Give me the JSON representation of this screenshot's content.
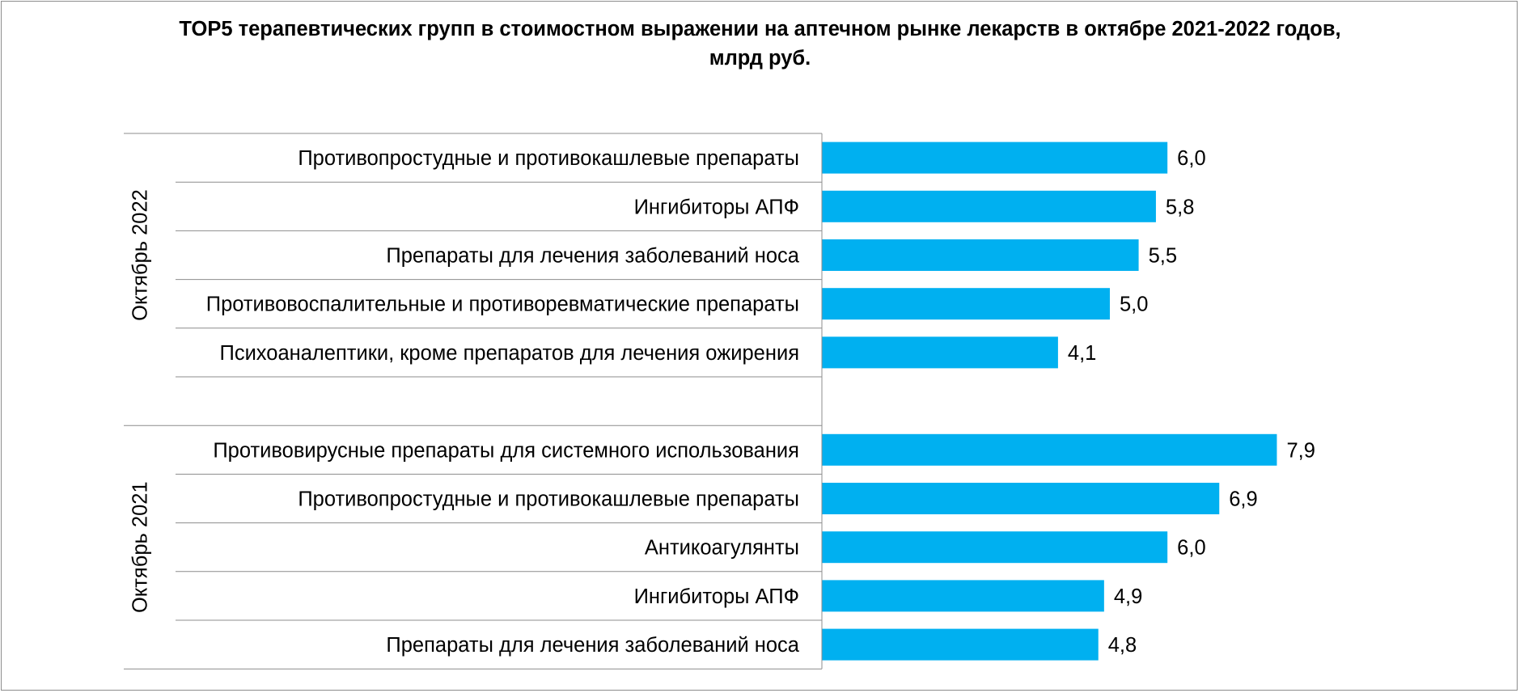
{
  "chart_data": {
    "type": "bar",
    "orientation": "horizontal",
    "title": "TOP5 терапевтических групп в стоимостном выражении на аптечном рынке лекарств в октябре 2021-2022 годов,",
    "subtitle": "млрд руб.",
    "bar_color": "#00B0F0",
    "value_format": "comma-decimal-1",
    "grid": false,
    "legend": "none",
    "xlim": [
      0,
      9.2
    ],
    "groups": [
      {
        "name": "Октябрь 2022",
        "categories": [
          "Противопростудные и противокашлевые препараты",
          "Ингибиторы АПФ",
          "Препараты для лечения заболеваний носа",
          "Противовоспалительные и противоревматические препараты",
          "Психоаналептики, кроме препаратов для лечения ожирения"
        ],
        "values": [
          6.0,
          5.8,
          5.5,
          5.0,
          4.1
        ],
        "value_labels": [
          "6,0",
          "5,8",
          "5,5",
          "5,0",
          "4,1"
        ]
      },
      {
        "name": "Октябрь 2021",
        "categories": [
          "Противовирусные препараты для системного использования",
          "Противопростудные и противокашлевые препараты",
          "Антикоагулянты",
          "Ингибиторы АПФ",
          "Препараты для лечения заболеваний носа"
        ],
        "values": [
          7.9,
          6.9,
          6.0,
          4.9,
          4.8
        ],
        "value_labels": [
          "7,9",
          "6,9",
          "6,0",
          "4,9",
          "4,8"
        ]
      }
    ]
  }
}
